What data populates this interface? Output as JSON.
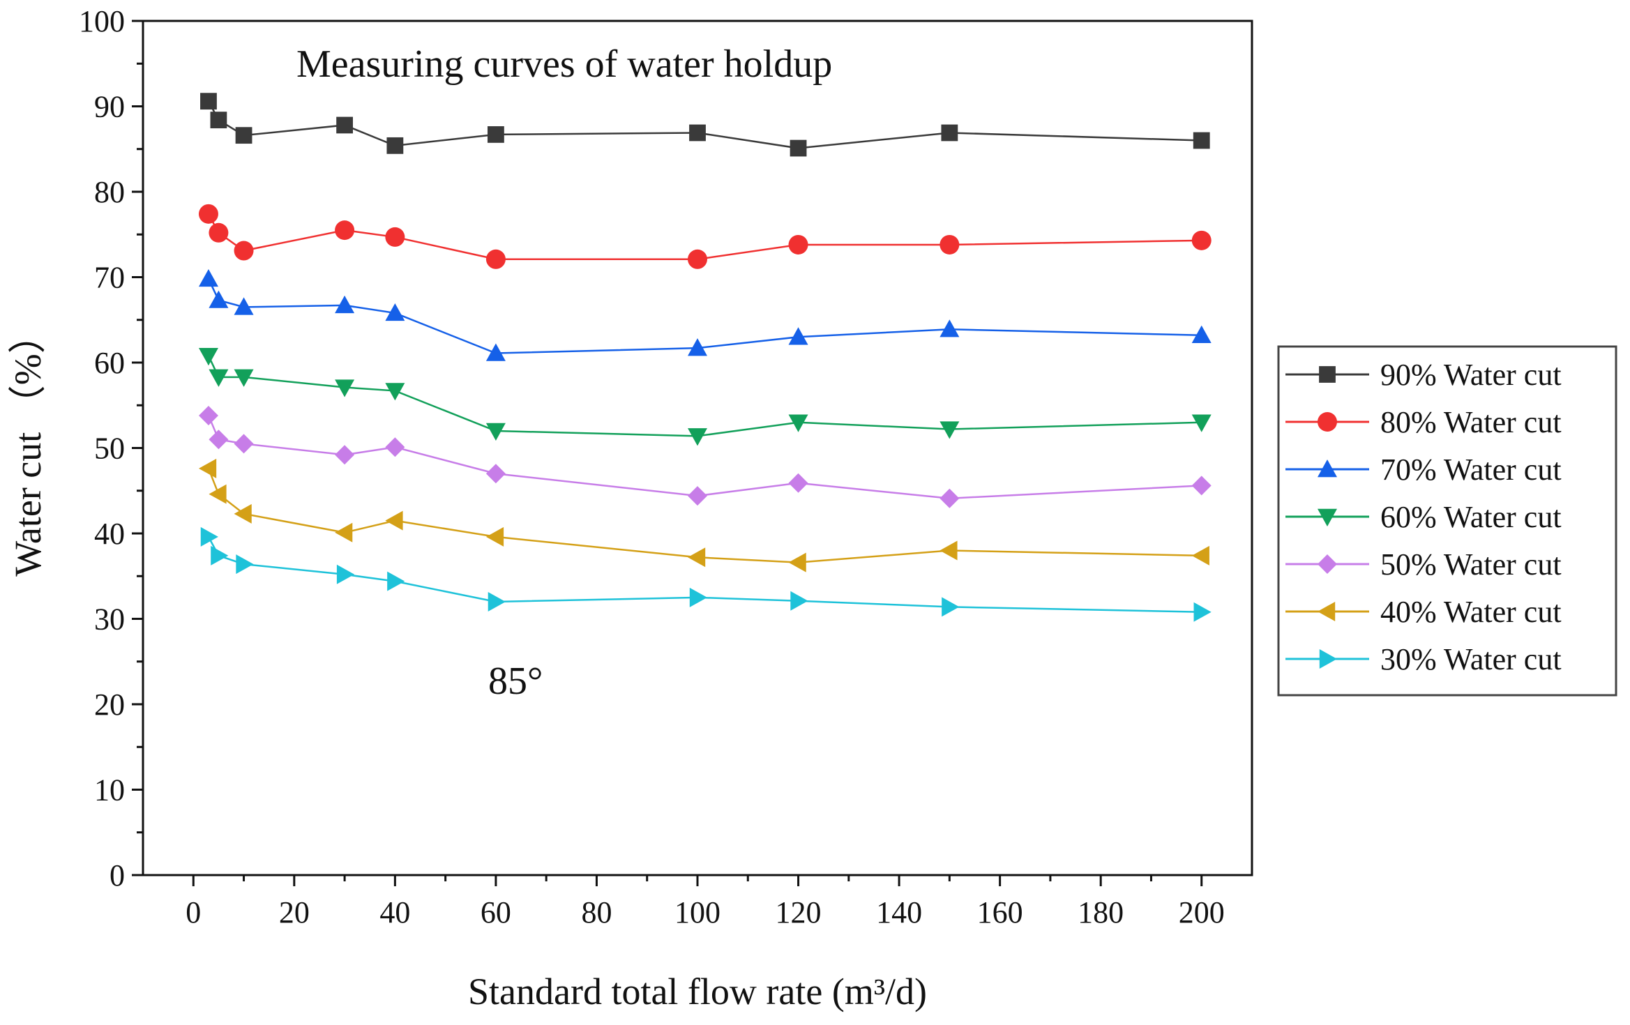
{
  "chart_data": {
    "type": "line",
    "title": "Measuring curves of water holdup",
    "annotation": "85°",
    "xlabel": "Standard total flow rate (m³/d)",
    "ylabel": "Water cut （%）",
    "xlim": [
      -10,
      210
    ],
    "ylim": [
      0,
      100
    ],
    "x_ticks": [
      0,
      20,
      40,
      60,
      80,
      100,
      120,
      140,
      160,
      180,
      200
    ],
    "y_ticks": [
      0,
      10,
      20,
      30,
      40,
      50,
      60,
      70,
      80,
      90,
      100
    ],
    "legend_position": "right, outside plot",
    "x": [
      3,
      5,
      10,
      30,
      40,
      60,
      100,
      120,
      150,
      200
    ],
    "series": [
      {
        "name": "90% Water cut",
        "color": "#3a3a3a",
        "marker": "square",
        "values": [
          90.6,
          88.4,
          86.6,
          87.8,
          85.4,
          86.7,
          86.9,
          85.1,
          86.9,
          86.0
        ]
      },
      {
        "name": "80% Water cut",
        "color": "#f03030",
        "marker": "circle",
        "values": [
          77.4,
          75.2,
          73.1,
          75.5,
          74.7,
          72.1,
          72.1,
          73.8,
          73.8,
          74.3
        ]
      },
      {
        "name": "70% Water cut",
        "color": "#1560e8",
        "marker": "triangle-up",
        "values": [
          69.8,
          67.3,
          66.5,
          66.7,
          65.8,
          61.1,
          61.7,
          63.0,
          63.9,
          63.2
        ]
      },
      {
        "name": "60% Water cut",
        "color": "#12a05a",
        "marker": "triangle-down",
        "values": [
          60.8,
          58.3,
          58.3,
          57.1,
          56.7,
          52.0,
          51.4,
          53.0,
          52.2,
          53.0
        ]
      },
      {
        "name": "50% Water cut",
        "color": "#c77de8",
        "marker": "diamond",
        "values": [
          53.8,
          51.0,
          50.5,
          49.2,
          50.1,
          47.0,
          44.4,
          45.9,
          44.1,
          45.6
        ]
      },
      {
        "name": "40% Water cut",
        "color": "#d4a017",
        "marker": "triangle-left",
        "values": [
          47.6,
          44.6,
          42.3,
          40.1,
          41.5,
          39.6,
          37.2,
          36.6,
          38.0,
          37.4
        ]
      },
      {
        "name": "30% Water cut",
        "color": "#1ec2d9",
        "marker": "triangle-right",
        "values": [
          39.6,
          37.4,
          36.4,
          35.2,
          34.4,
          32.0,
          32.5,
          32.1,
          31.4,
          30.8
        ]
      }
    ]
  }
}
